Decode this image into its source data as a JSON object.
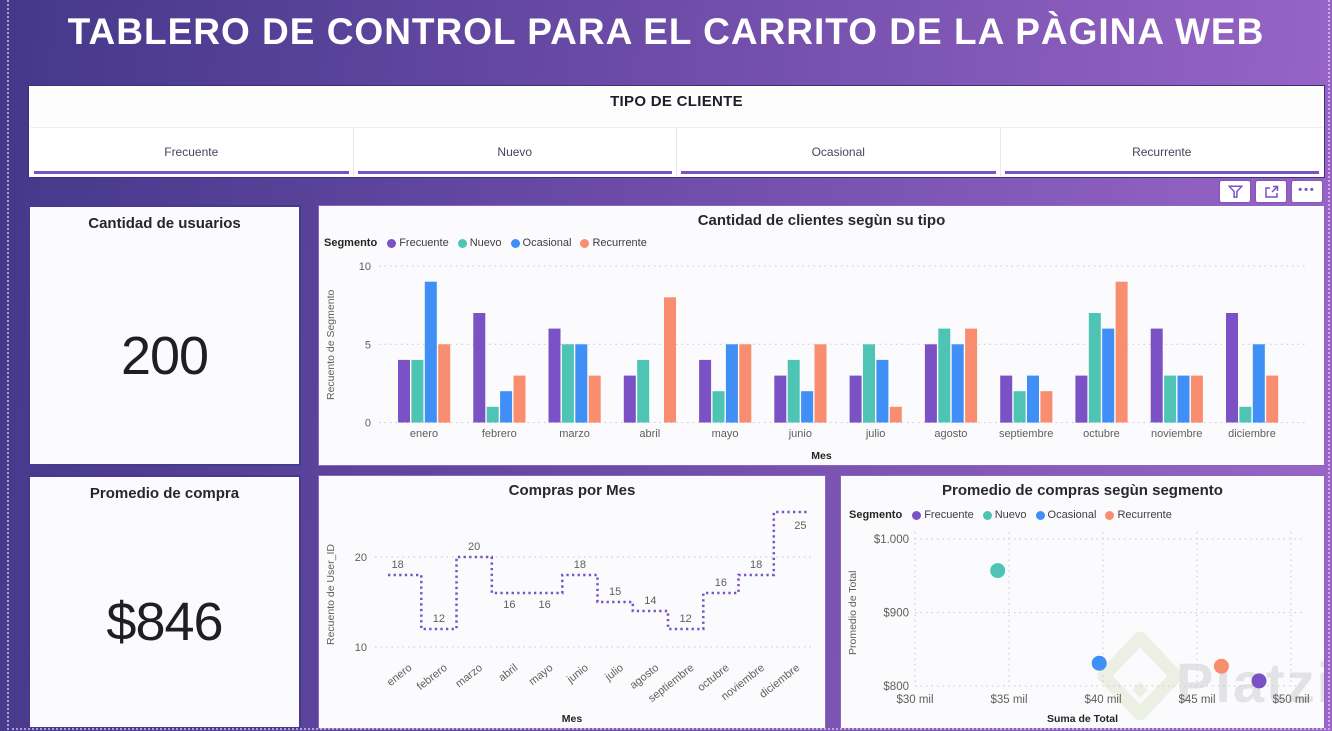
{
  "header": {
    "title": "TABLERO DE CONTROL PARA EL CARRITO DE LA PÀGINA WEB"
  },
  "client_type_filter": {
    "title": "TIPO DE CLIENTE",
    "options": [
      "Frecuente",
      "Nuevo",
      "Ocasional",
      "Recurrente"
    ]
  },
  "visual_toolbar": {
    "icons": [
      "filter-funnel",
      "focus-mode",
      "more-options"
    ],
    "more_options_glyph": "•••"
  },
  "kpis": [
    {
      "title": "Cantidad de usuarios",
      "value": "200"
    },
    {
      "title": "Promedio de compra",
      "value": "$846"
    }
  ],
  "segments": {
    "legend_title": "Segmento",
    "names": [
      "Frecuente",
      "Nuevo",
      "Ocasional",
      "Recurrente"
    ],
    "colors": [
      "#7A52C5",
      "#4EC4B4",
      "#3F8FF6",
      "#F98D70"
    ]
  },
  "watermark": {
    "text": "Platzi",
    "logo_color": "#ecefe3",
    "text_color": "#e3e3e6"
  },
  "chart_data": [
    {
      "type": "bar",
      "title": "Cantidad de clientes segùn su tipo",
      "legend_title": "Segmento",
      "xlabel": "Mes",
      "ylabel": "Recuento de Segmento",
      "ylim": [
        0,
        10
      ],
      "yticks": [
        0,
        5,
        10
      ],
      "grid": "horizontal-dotted",
      "legend_position": "top-left",
      "categories": [
        "enero",
        "febrero",
        "marzo",
        "abril",
        "mayo",
        "junio",
        "julio",
        "agosto",
        "septiembre",
        "octubre",
        "noviembre",
        "diciembre"
      ],
      "series": [
        {
          "name": "Frecuente",
          "color": "#7A52C5",
          "values": [
            4,
            7,
            6,
            3,
            4,
            3,
            3,
            5,
            3,
            3,
            6,
            7
          ]
        },
        {
          "name": "Nuevo",
          "color": "#4EC4B4",
          "values": [
            4,
            1,
            5,
            4,
            2,
            4,
            5,
            6,
            2,
            7,
            3,
            1
          ]
        },
        {
          "name": "Ocasional",
          "color": "#3F8FF6",
          "values": [
            9,
            2,
            5,
            0,
            5,
            2,
            4,
            5,
            3,
            6,
            3,
            5
          ]
        },
        {
          "name": "Recurrente",
          "color": "#F98D70",
          "values": [
            5,
            3,
            3,
            8,
            5,
            5,
            1,
            6,
            2,
            9,
            3,
            3
          ]
        }
      ]
    },
    {
      "type": "line",
      "line_style": "dotted-step",
      "title": "Compras por Mes",
      "xlabel": "Mes",
      "ylabel": "Recuento de User_ID",
      "ylim": [
        8,
        27
      ],
      "yticks": [
        10,
        20
      ],
      "grid": "horizontal-dotted",
      "color": "#7A52C5",
      "categories": [
        "enero",
        "febrero",
        "marzo",
        "abril",
        "mayo",
        "junio",
        "julio",
        "agosto",
        "septiembre",
        "octubre",
        "noviembre",
        "diciembre"
      ],
      "values": [
        18,
        12,
        20,
        16,
        16,
        18,
        15,
        14,
        12,
        16,
        18,
        25
      ],
      "data_labels": true
    },
    {
      "type": "scatter",
      "title": "Promedio de compras segùn segmento",
      "legend_title": "Segmento",
      "xlabel": "Suma de Total",
      "ylabel": "Promedio de Total",
      "xlim": [
        30000,
        50000
      ],
      "ylim": [
        800,
        1000
      ],
      "xtick_values": [
        30000,
        35000,
        40000,
        45000,
        50000
      ],
      "xtick_labels": [
        "$30 mil",
        "$35 mil",
        "$40 mil",
        "$45 mil",
        "$50 mil"
      ],
      "ytick_values": [
        800,
        900,
        1000
      ],
      "ytick_labels": [
        "$800",
        "$900",
        "$1.000"
      ],
      "grid": "both-dotted",
      "legend_position": "top-left",
      "points": [
        {
          "name": "Frecuente",
          "color": "#7A52C5",
          "x": 48300,
          "y": 807
        },
        {
          "name": "Nuevo",
          "color": "#4EC4B4",
          "x": 34400,
          "y": 957
        },
        {
          "name": "Ocasional",
          "color": "#3F8FF6",
          "x": 39800,
          "y": 831
        },
        {
          "name": "Recurrente",
          "color": "#F98D70",
          "x": 46300,
          "y": 827
        }
      ]
    }
  ]
}
